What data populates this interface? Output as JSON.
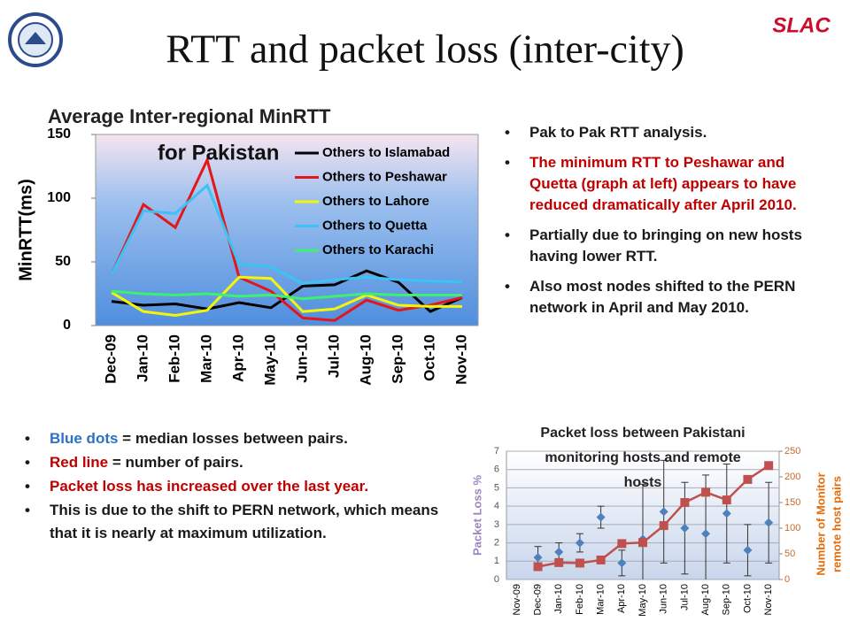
{
  "slide": {
    "title": "RTT and packet loss (inter-city)",
    "logo": "SLAC",
    "right_bullets": [
      {
        "parts": [
          {
            "text": "Pak to Pak RTT analysis.",
            "color": "#1a1a1a"
          }
        ]
      },
      {
        "parts": [
          {
            "text": "The minimum RTT to Peshawar and Quetta (graph at left) appears to have reduced dramatically after April 2010.",
            "color": "#c00000"
          }
        ]
      },
      {
        "parts": [
          {
            "text": "Partially due to bringing on new hosts having lower RTT.",
            "color": "#1a1a1a"
          }
        ]
      },
      {
        "parts": [
          {
            "text": "Also most nodes shifted to the PERN network in April and May 2010.",
            "color": "#1a1a1a"
          }
        ]
      }
    ],
    "left_bullets": [
      {
        "parts": [
          {
            "text": "Blue dots",
            "color": "#2e6fc7"
          },
          {
            "text": " = median losses between pairs.",
            "color": "#1a1a1a"
          }
        ]
      },
      {
        "parts": [
          {
            "text": "Red line",
            "color": "#c00000"
          },
          {
            "text": " = number of pairs.",
            "color": "#1a1a1a"
          }
        ]
      },
      {
        "parts": [
          {
            "text": "Packet loss has increased over the last year.",
            "color": "#c00000"
          }
        ]
      },
      {
        "parts": [
          {
            "text": "This is due to the shift to PERN network, which means that it is nearly at maximum utilization.",
            "color": "#1a1a1a"
          }
        ]
      }
    ]
  },
  "chart_data": [
    {
      "type": "line",
      "title_lines": [
        "Average Inter-regional MinRTT",
        "for Pakistan"
      ],
      "y_label": "MinRTT(ms)",
      "categories": [
        "Dec-09",
        "Jan-10",
        "Feb-10",
        "Mar-10",
        "Apr-10",
        "May-10",
        "Jun-10",
        "Jul-10",
        "Aug-10",
        "Sep-10",
        "Oct-10",
        "Nov-10"
      ],
      "ylim": [
        0,
        150
      ],
      "yticks": [
        0,
        50,
        100,
        150
      ],
      "grid": false,
      "legend": "top-right",
      "series": [
        {
          "name": "Others to Islamabad",
          "color": "#000000",
          "values": [
            19,
            16,
            17,
            13,
            18,
            14,
            31,
            32,
            43,
            34,
            11,
            22
          ]
        },
        {
          "name": "Others to Peshawar",
          "color": "#e3161b",
          "values": [
            40,
            95,
            77,
            130,
            38,
            27,
            6,
            4,
            20,
            12,
            16,
            22
          ]
        },
        {
          "name": "Others to Lahore",
          "color": "#f5f50a",
          "values": [
            26,
            11,
            8,
            12,
            38,
            37,
            11,
            13,
            24,
            16,
            15,
            15
          ]
        },
        {
          "name": "Others to Quetta",
          "color": "#3cc2f5",
          "values": [
            40,
            90,
            88,
            110,
            48,
            46,
            33,
            36,
            38,
            36,
            35,
            34
          ]
        },
        {
          "name": "Others to Karachi",
          "color": "#3df070",
          "values": [
            27,
            25,
            24,
            25,
            23,
            24,
            21,
            23,
            25,
            24,
            24,
            24
          ]
        }
      ]
    },
    {
      "type": "combo",
      "title_lines": [
        "Packet loss between Pakistani",
        "monitoring hosts and remote",
        "hosts"
      ],
      "y_label": "Packet Loss %",
      "y2_label_lines": [
        "Number of Monitor",
        "remote host pairs"
      ],
      "categories": [
        "Nov-09",
        "Dec-09",
        "Jan-10",
        "Feb-10",
        "Mar-10",
        "Apr-10",
        "May-10",
        "Jun-10",
        "Jul-10",
        "Aug-10",
        "Sep-10",
        "Oct-10",
        "Nov-10"
      ],
      "ylim": [
        0,
        7
      ],
      "yticks": [
        0,
        1,
        2,
        3,
        4,
        5,
        6,
        7
      ],
      "y2lim": [
        0,
        250
      ],
      "y2ticks": [
        0,
        50,
        100,
        150,
        200,
        250
      ],
      "grid": true,
      "series": [
        {
          "color": "#4f81bd",
          "marker": "diamond",
          "values": [
            null,
            1.2,
            1.5,
            2.0,
            3.4,
            0.9,
            2.2,
            3.7,
            2.8,
            2.5,
            3.6,
            1.6,
            3.1
          ],
          "errors": [
            null,
            0.6,
            0.5,
            0.5,
            0.6,
            0.7,
            3.0,
            2.8,
            2.5,
            3.2,
            2.7,
            1.4,
            2.2
          ]
        },
        {
          "color": "#c0504d",
          "marker": "square",
          "axis": "y2",
          "values": [
            null,
            25,
            33,
            32,
            38,
            70,
            72,
            105,
            150,
            170,
            155,
            195,
            222
          ]
        }
      ]
    }
  ]
}
